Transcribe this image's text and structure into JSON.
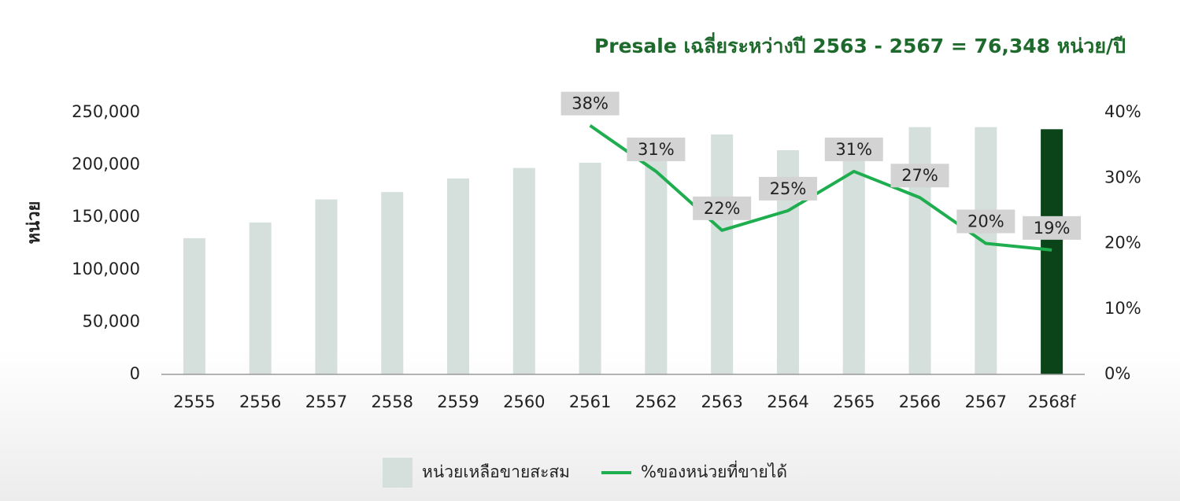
{
  "chart_data": {
    "type": "bar-line",
    "title": "Presale เฉลี่ยระหว่างปี 2563 - 2567 = 76,348 หน่วย/ปี",
    "y_label": "หน่วย",
    "categories": [
      "2555",
      "2556",
      "2557",
      "2558",
      "2559",
      "2560",
      "2561",
      "2562",
      "2563",
      "2564",
      "2565",
      "2566",
      "2567",
      "2568f"
    ],
    "series": [
      {
        "name": "หน่วยเหลือขายสะสม",
        "type": "bar",
        "color": "#d5dfdb",
        "colors": [
          "#d5dfdb",
          "#d5dfdb",
          "#d5dfdb",
          "#d5dfdb",
          "#d5dfdb",
          "#d5dfdb",
          "#d5dfdb",
          "#d5dfdb",
          "#d5dfdb",
          "#d5dfdb",
          "#d5dfdb",
          "#d5dfdb",
          "#d5dfdb",
          "#0b4419"
        ],
        "values": [
          130000,
          145000,
          167000,
          174000,
          187000,
          197000,
          202000,
          215000,
          229000,
          214000,
          225000,
          236000,
          236000,
          234000
        ]
      },
      {
        "name": "%ของหน่วยที่ขายได้",
        "type": "line",
        "axis": "y2",
        "color": "#1fae4f",
        "values": [
          null,
          null,
          null,
          null,
          null,
          null,
          38,
          31,
          22,
          25,
          31,
          27,
          20,
          19
        ],
        "value_labels": [
          null,
          null,
          null,
          null,
          null,
          null,
          "38%",
          "31%",
          "22%",
          "25%",
          "31%",
          "27%",
          "20%",
          "19%"
        ]
      }
    ],
    "ylim": [
      0,
      250000
    ],
    "yticks": [
      0,
      {
        "value": 50000,
        "label": "50,000"
      },
      {
        "value": 100000,
        "label": "100,000"
      },
      {
        "value": 150000,
        "label": "150,000"
      },
      {
        "value": 200000,
        "label": "200,000"
      },
      {
        "value": 250000,
        "label": "250,000"
      }
    ],
    "y2lim": [
      0,
      40
    ],
    "y2ticks": [
      {
        "value": 0,
        "label": "0%"
      },
      {
        "value": 10,
        "label": "10%"
      },
      {
        "value": 20,
        "label": "20%"
      },
      {
        "value": 30,
        "label": "30%"
      },
      {
        "value": 40,
        "label": "40%"
      }
    ],
    "grid": false,
    "legend": "bottom"
  }
}
